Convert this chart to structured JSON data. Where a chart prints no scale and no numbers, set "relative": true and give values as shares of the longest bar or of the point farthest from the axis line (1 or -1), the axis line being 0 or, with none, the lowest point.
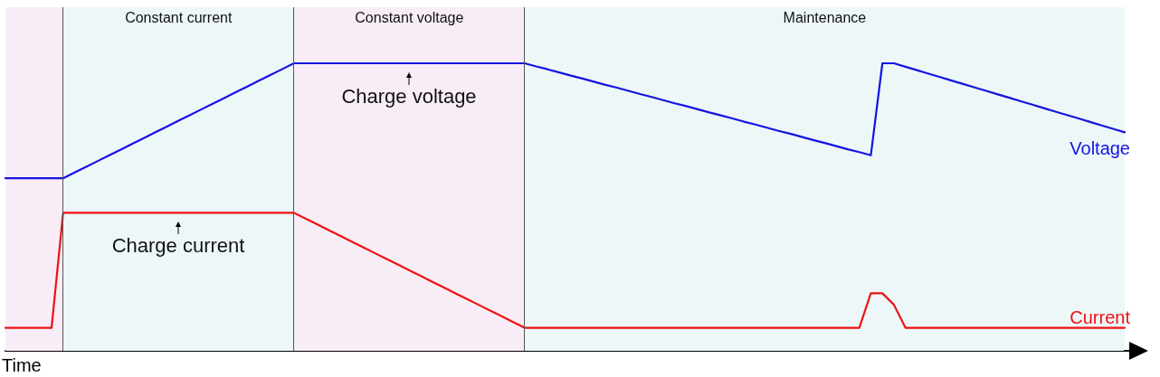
{
  "chart_data": {
    "type": "line",
    "relative": true,
    "xlabel": "Time",
    "legend": false,
    "grid": false,
    "marker": "none",
    "line_style": "solid",
    "categories": [
      null,
      null,
      null,
      null,
      null,
      null,
      null,
      null,
      null,
      null,
      null,
      null,
      null,
      null,
      null,
      null,
      null,
      null,
      null,
      null,
      null,
      null,
      null,
      null,
      null,
      null,
      null,
      null,
      null,
      null,
      null,
      null,
      null,
      null,
      null,
      null,
      null,
      null,
      null,
      null,
      null,
      null,
      null,
      null,
      null,
      null,
      null,
      null,
      null,
      null,
      null,
      null,
      null,
      null,
      null,
      null,
      null,
      null,
      null,
      null,
      null,
      null,
      null,
      null,
      null,
      null,
      null,
      null,
      null,
      null,
      null,
      null,
      null,
      null,
      null,
      null,
      null,
      null,
      null,
      null,
      null,
      null,
      null,
      null,
      null,
      null,
      null,
      null,
      null,
      null,
      null,
      null,
      null,
      null,
      null,
      null,
      null,
      null
    ],
    "series": [
      {
        "name": "Voltage",
        "color": "#1414e0",
        "values": [
          0.6,
          0.6,
          0.6,
          0.6,
          0.6,
          0.6,
          0.62,
          0.64,
          0.66,
          0.68,
          0.7,
          0.72,
          0.74,
          0.76,
          0.78,
          0.8,
          0.82,
          0.84,
          0.86,
          0.88,
          0.9,
          0.92,
          0.94,
          0.96,
          0.98,
          1,
          1,
          1,
          1,
          1,
          1,
          1,
          1,
          1,
          1,
          1,
          1,
          1,
          1,
          1,
          1,
          1,
          1,
          1,
          1,
          1,
          0.989,
          0.979,
          0.968,
          0.957,
          0.947,
          0.936,
          0.925,
          0.915,
          0.904,
          0.893,
          0.883,
          0.872,
          0.861,
          0.851,
          0.84,
          0.829,
          0.819,
          0.808,
          0.797,
          0.787,
          0.776,
          0.765,
          0.755,
          0.744,
          0.733,
          0.723,
          0.712,
          0.701,
          0.691,
          0.68,
          1,
          1,
          0.988,
          0.976,
          0.964,
          0.952,
          0.94,
          0.928,
          0.916,
          0.904,
          0.892,
          0.88,
          0.868,
          0.856,
          0.844,
          0.832,
          0.82,
          0.808,
          0.796,
          0.784,
          0.772,
          0.76
        ]
      },
      {
        "name": "Current",
        "color": "#ee1111",
        "values": [
          0.08,
          0.08,
          0.08,
          0.08,
          0.08,
          0.48,
          0.48,
          0.48,
          0.48,
          0.48,
          0.48,
          0.48,
          0.48,
          0.48,
          0.48,
          0.48,
          0.48,
          0.48,
          0.48,
          0.48,
          0.48,
          0.48,
          0.48,
          0.48,
          0.48,
          0.48,
          0.46,
          0.44,
          0.42,
          0.4,
          0.38,
          0.36,
          0.34,
          0.32,
          0.3,
          0.28,
          0.26,
          0.24,
          0.22,
          0.2,
          0.18,
          0.16,
          0.14,
          0.12,
          0.1,
          0.08,
          0.08,
          0.08,
          0.08,
          0.08,
          0.08,
          0.08,
          0.08,
          0.08,
          0.08,
          0.08,
          0.08,
          0.08,
          0.08,
          0.08,
          0.08,
          0.08,
          0.08,
          0.08,
          0.08,
          0.08,
          0.08,
          0.08,
          0.08,
          0.08,
          0.08,
          0.08,
          0.08,
          0.08,
          0.08,
          0.2,
          0.2,
          0.16,
          0.08,
          0.08,
          0.08,
          0.08,
          0.08,
          0.08,
          0.08,
          0.08,
          0.08,
          0.08,
          0.08,
          0.08,
          0.08,
          0.08,
          0.08,
          0.08,
          0.08,
          0.08,
          0.08,
          0.08
        ]
      }
    ],
    "annotations": [
      "Constant current",
      "Constant voltage",
      "Maintenance",
      "Charge voltage",
      "Charge current"
    ]
  }
}
